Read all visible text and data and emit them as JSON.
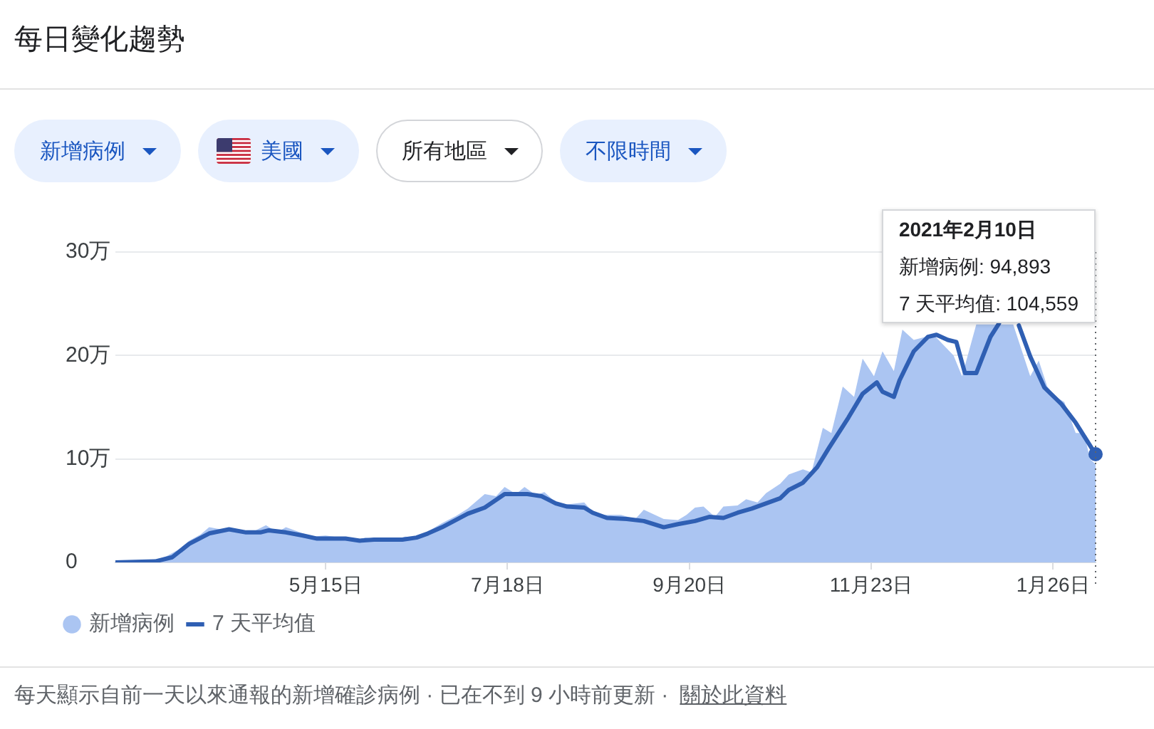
{
  "chart_data": {
    "type": "line",
    "title": "每日變化趨勢",
    "series": [
      {
        "name": "新增病例",
        "type": "area",
        "color": "#abc5f2",
        "x": [
          "2020-03-02",
          "2020-03-09",
          "2020-03-16",
          "2020-03-20",
          "2020-03-24",
          "2020-03-28",
          "2020-04-01",
          "2020-04-04",
          "2020-04-08",
          "2020-04-11",
          "2020-04-15",
          "2020-04-19",
          "2020-04-24",
          "2020-04-28",
          "2020-05-01",
          "2020-05-06",
          "2020-05-10",
          "2020-05-15",
          "2020-05-20",
          "2020-05-25",
          "2020-05-29",
          "2020-06-03",
          "2020-06-08",
          "2020-06-12",
          "2020-06-16",
          "2020-06-20",
          "2020-06-25",
          "2020-06-30",
          "2020-07-04",
          "2020-07-10",
          "2020-07-14",
          "2020-07-17",
          "2020-07-21",
          "2020-07-24",
          "2020-07-28",
          "2020-07-31",
          "2020-08-04",
          "2020-08-08",
          "2020-08-14",
          "2020-08-18",
          "2020-08-22",
          "2020-08-27",
          "2020-09-01",
          "2020-09-04",
          "2020-09-11",
          "2020-09-16",
          "2020-09-19",
          "2020-09-22",
          "2020-09-25",
          "2020-09-29",
          "2020-10-02",
          "2020-10-07",
          "2020-10-10",
          "2020-10-14",
          "2020-10-17",
          "2020-10-22",
          "2020-10-25",
          "2020-10-30",
          "2020-11-02",
          "2020-11-06",
          "2020-11-09",
          "2020-11-13",
          "2020-11-17",
          "2020-11-20",
          "2020-11-24",
          "2020-11-27",
          "2020-12-01",
          "2020-12-04",
          "2020-12-08",
          "2020-12-11",
          "2020-12-15",
          "2020-12-18",
          "2020-12-22",
          "2020-12-25",
          "2020-12-30",
          "2021-01-02",
          "2021-01-08",
          "2021-01-12",
          "2021-01-15",
          "2021-01-18",
          "2021-01-21",
          "2021-01-24",
          "2021-01-27",
          "2021-01-30",
          "2021-02-03",
          "2021-02-06",
          "2021-02-08",
          "2021-02-10"
        ],
        "values": [
          0,
          0,
          0.2,
          0.6,
          1.2,
          2.1,
          2.7,
          3.4,
          3.2,
          3.3,
          3,
          2.9,
          3.6,
          2.9,
          3.4,
          2.9,
          2.5,
          2.6,
          2.4,
          2.1,
          2.4,
          2.2,
          2.1,
          2.5,
          2.4,
          3,
          3.8,
          4.5,
          5.2,
          6.6,
          6.4,
          7.3,
          6.6,
          7.3,
          6.5,
          6.8,
          5.8,
          5.6,
          5.8,
          4.6,
          4.6,
          4.6,
          4.2,
          5.1,
          4.2,
          4.1,
          4.6,
          5.3,
          5.4,
          4.4,
          5.4,
          5.5,
          6.1,
          5.8,
          6.7,
          7.6,
          8.5,
          9,
          8.7,
          13,
          12.5,
          17,
          16,
          19.7,
          18,
          20.4,
          18.5,
          22.5,
          21.5,
          null,
          22,
          null,
          20,
          18,
          23,
          null,
          null,
          23,
          null,
          18,
          19.5,
          17,
          16,
          15.5,
          12.5,
          12.5,
          10,
          9.4893
        ]
      },
      {
        "name": "7 天平均值",
        "color": "#2f5fb3",
        "x": [
          "2020-03-02",
          "2020-03-16",
          "2020-03-22",
          "2020-03-28",
          "2020-04-04",
          "2020-04-11",
          "2020-04-17",
          "2020-04-22",
          "2020-04-25",
          "2020-05-01",
          "2020-05-07",
          "2020-05-12",
          "2020-05-17",
          "2020-05-22",
          "2020-05-27",
          "2020-06-01",
          "2020-06-06",
          "2020-06-11",
          "2020-06-16",
          "2020-06-20",
          "2020-06-25",
          "2020-07-04",
          "2020-07-10",
          "2020-07-17",
          "2020-07-25",
          "2020-07-30",
          "2020-08-04",
          "2020-08-08",
          "2020-08-14",
          "2020-08-17",
          "2020-08-22",
          "2020-08-29",
          "2020-09-04",
          "2020-09-11",
          "2020-09-16",
          "2020-09-22",
          "2020-09-27",
          "2020-10-02",
          "2020-10-07",
          "2020-10-12",
          "2020-10-17",
          "2020-10-22",
          "2020-10-25",
          "2020-10-30",
          "2020-11-04",
          "2020-11-08",
          "2020-11-15",
          "2020-11-20",
          "2020-11-25",
          "2020-11-27",
          "2020-12-01",
          "2020-12-03",
          "2020-12-08",
          "2020-12-13",
          "2020-12-16",
          "2020-12-20",
          "2020-12-23",
          "2020-12-26",
          "2020-12-30",
          "2021-01-04",
          "2021-01-07",
          "2021-01-10",
          "2021-01-14",
          "2021-01-18",
          "2021-01-23",
          "2021-01-29",
          "2021-02-03",
          "2021-02-10"
        ],
        "values": [
          0,
          0.1,
          0.5,
          1.8,
          2.8,
          3.2,
          2.9,
          2.9,
          3.1,
          2.9,
          2.6,
          2.3,
          2.3,
          2.3,
          2.1,
          2.2,
          2.2,
          2.2,
          2.4,
          2.8,
          3.4,
          4.7,
          5.3,
          6.6,
          6.6,
          6.4,
          5.7,
          5.4,
          5.3,
          4.8,
          4.3,
          4.2,
          4,
          3.4,
          3.7,
          4,
          4.4,
          4.3,
          4.8,
          5.2,
          5.7,
          6.2,
          7,
          7.7,
          9.2,
          11,
          14,
          16.3,
          17.4,
          16.5,
          16,
          17.6,
          20.4,
          21.8,
          22,
          21.5,
          21.3,
          18.3,
          18.3,
          21.8,
          23.1,
          null,
          22.9,
          19.9,
          16.9,
          15.3,
          13.5,
          10.4559
        ]
      },
      {
        "type": "scatter",
        "color": "#2f5fb3",
        "marker": "circle",
        "x": [
          "2021-02-10"
        ],
        "values": [
          10.4559
        ]
      }
    ],
    "xlim": [
      "2020-03-02",
      "2021-02-10"
    ],
    "xticks": [
      {
        "value": "2020-05-15",
        "label": "5月15日"
      },
      {
        "value": "2020-07-18",
        "label": "7月18日"
      },
      {
        "value": "2020-09-20",
        "label": "9月20日"
      },
      {
        "value": "2020-11-23",
        "label": "11月23日"
      },
      {
        "value": "2021-01-26",
        "label": "1月26日"
      }
    ],
    "ylim": [
      0,
      30
    ],
    "yticks": [
      0,
      {
        "value": 10,
        "label": "10万"
      },
      {
        "value": 20,
        "label": "20万"
      },
      {
        "value": 30,
        "label": "30万"
      }
    ],
    "grid": "y",
    "legend": "bottom left",
    "marker": "none",
    "line_style": "solid",
    "ref_lines": [
      {
        "axis": "x",
        "value": "2021-02-10",
        "line_style": "dotted",
        "color": "#5f6368"
      }
    ],
    "annotations": [
      "新增病例",
      "美國",
      "所有地區",
      "不限時間",
      "每天顯示自前一天以來通報的新增確診病例 · 已在不到 9 小時前更新 ·",
      "關於此資料",
      "2021年2月10日",
      "新增病例: 94,893",
      "7 天平均值: 104,559"
    ]
  }
}
